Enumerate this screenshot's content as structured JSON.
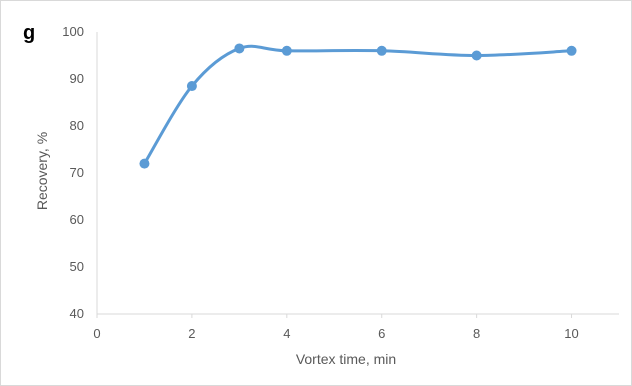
{
  "chart_data": {
    "type": "line",
    "panel_label": "g",
    "title": "",
    "xlabel": "Vortex time, min",
    "ylabel": "Recovery, %",
    "xlim": [
      0,
      11
    ],
    "ylim": [
      40,
      100
    ],
    "x_ticks": [
      0,
      2,
      4,
      6,
      8,
      10
    ],
    "y_ticks": [
      40,
      50,
      60,
      70,
      80,
      90,
      100
    ],
    "grid": false,
    "smooth": true,
    "series": [
      {
        "x": [
          1,
          2,
          3,
          4,
          6,
          8,
          10
        ],
        "values": [
          72,
          88.5,
          96.5,
          96,
          96,
          95,
          96
        ],
        "color": "#5b9bd5"
      }
    ]
  }
}
